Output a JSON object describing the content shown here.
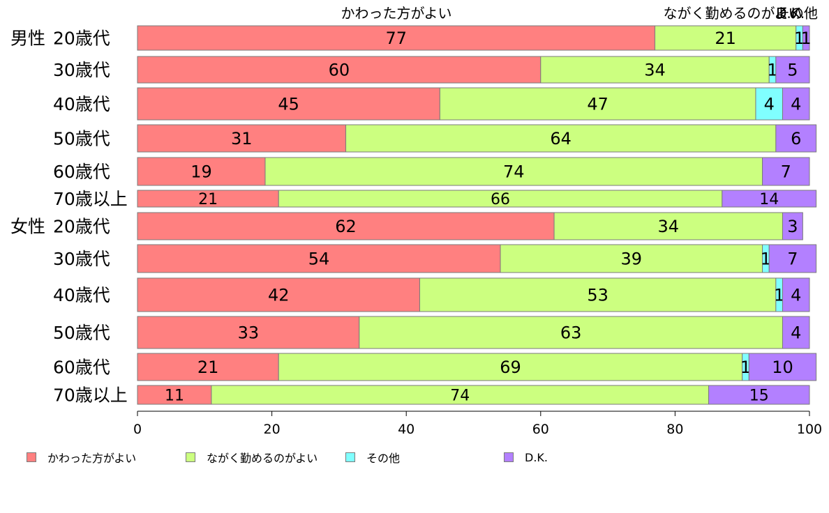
{
  "chart_data": {
    "type": "bar",
    "orientation": "horizontal",
    "stacked": true,
    "xlim": [
      0,
      100
    ],
    "xticks": [
      0,
      20,
      40,
      60,
      80,
      100
    ],
    "top_labels": [
      "かわった方がよい",
      "ながく勤めるのがよい",
      "その他",
      "D.K."
    ],
    "groups": [
      "男性",
      "女性"
    ],
    "categories": [
      {
        "group": "男性",
        "label": "20歳代"
      },
      {
        "group": "",
        "label": "30歳代"
      },
      {
        "group": "",
        "label": "40歳代"
      },
      {
        "group": "",
        "label": "50歳代"
      },
      {
        "group": "",
        "label": "60歳代"
      },
      {
        "group": "",
        "label": "70歳以上"
      },
      {
        "group": "女性",
        "label": "20歳代"
      },
      {
        "group": "",
        "label": "30歳代"
      },
      {
        "group": "",
        "label": "40歳代"
      },
      {
        "group": "",
        "label": "50歳代"
      },
      {
        "group": "",
        "label": "60歳代"
      },
      {
        "group": "",
        "label": "70歳以上"
      }
    ],
    "series": [
      {
        "name": "かわった方がよい",
        "color": "#ff8080",
        "values": [
          77,
          60,
          45,
          31,
          19,
          21,
          62,
          54,
          42,
          33,
          21,
          11
        ]
      },
      {
        "name": "ながく勤めるのがよい",
        "color": "#ccff80",
        "values": [
          21,
          34,
          47,
          64,
          74,
          66,
          34,
          39,
          53,
          63,
          69,
          74
        ]
      },
      {
        "name": "その他",
        "color": "#80ffff",
        "values": [
          1,
          1,
          4,
          0,
          0,
          0,
          0,
          1,
          1,
          0,
          1,
          0
        ]
      },
      {
        "name": "D.K.",
        "color": "#b380ff",
        "values": [
          1,
          5,
          4,
          6,
          7,
          14,
          3,
          7,
          4,
          4,
          10,
          15
        ]
      }
    ],
    "legend_position": "bottom",
    "grid": false
  }
}
